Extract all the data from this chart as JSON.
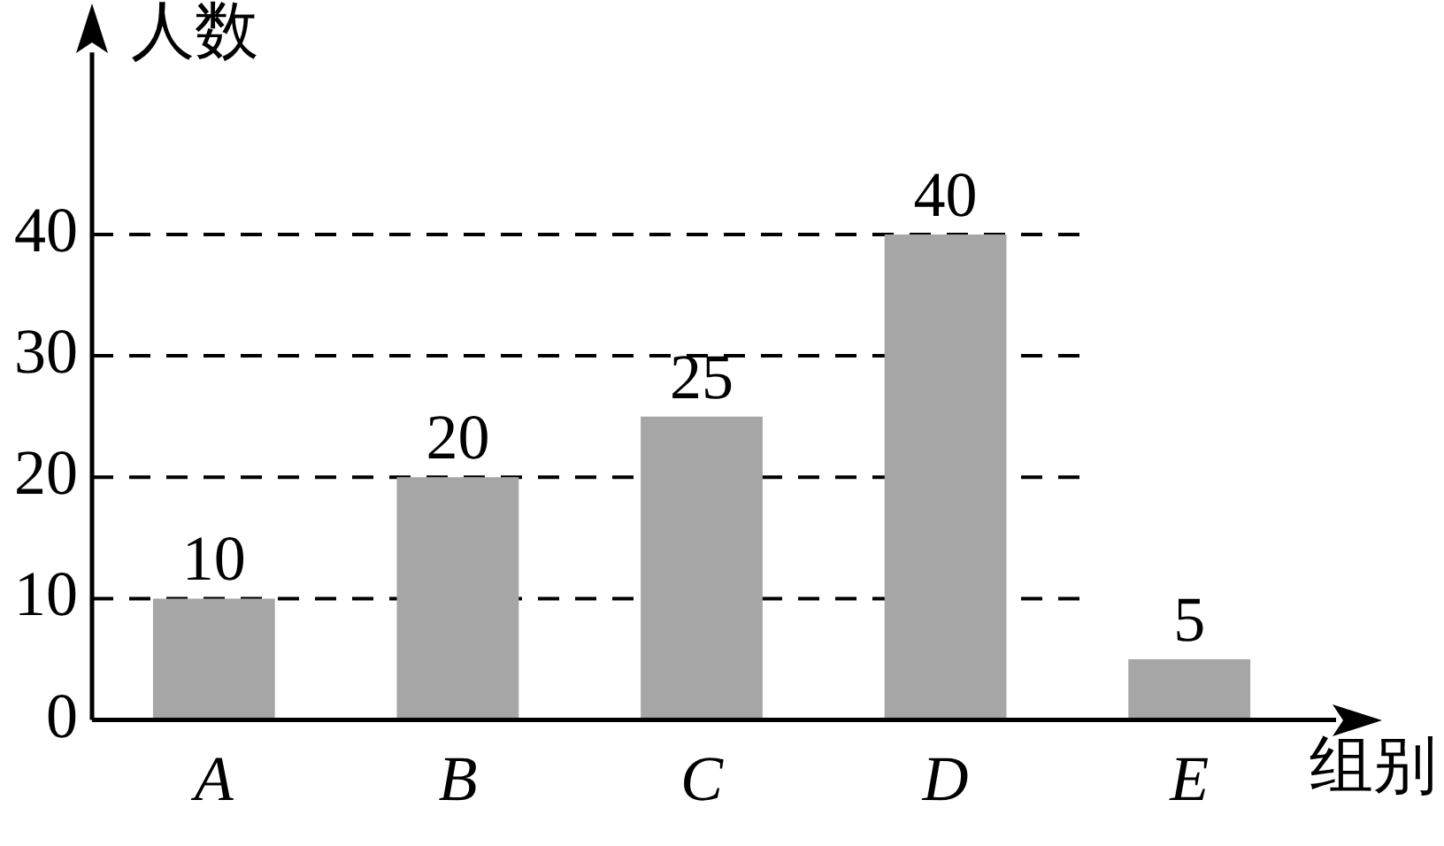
{
  "chart_data": {
    "type": "bar",
    "xlabel": "组别",
    "ylabel": "人数",
    "categories": [
      "A",
      "B",
      "C",
      "D",
      "E"
    ],
    "values": [
      10,
      20,
      25,
      40,
      5
    ],
    "color": "#a6a6a6",
    "ylim": [
      0,
      55
    ],
    "yticks": [
      0,
      10,
      20,
      30,
      40
    ],
    "grid": "y",
    "data_labels": true,
    "legend": false
  }
}
